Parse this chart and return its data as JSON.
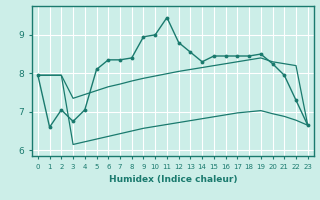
{
  "xlabel": "Humidex (Indice chaleur)",
  "ylabel": "",
  "background_color": "#cceee8",
  "line_color": "#1a7a6e",
  "grid_color": "#ffffff",
  "x": [
    0,
    1,
    2,
    3,
    4,
    5,
    6,
    7,
    8,
    9,
    10,
    11,
    12,
    13,
    14,
    15,
    16,
    17,
    18,
    19,
    20,
    21,
    22,
    23
  ],
  "y_main": [
    7.95,
    6.6,
    7.05,
    6.75,
    7.05,
    8.1,
    8.35,
    8.35,
    8.4,
    8.95,
    9.0,
    9.45,
    8.8,
    8.55,
    8.3,
    8.45,
    8.45,
    8.45,
    8.45,
    8.5,
    8.25,
    7.95,
    7.3,
    6.65
  ],
  "y_upper": [
    7.95,
    7.95,
    7.95,
    7.35,
    7.45,
    7.55,
    7.65,
    7.72,
    7.8,
    7.87,
    7.93,
    7.99,
    8.05,
    8.1,
    8.15,
    8.2,
    8.25,
    8.3,
    8.35,
    8.4,
    8.3,
    8.25,
    8.2,
    6.65
  ],
  "y_lower": [
    7.95,
    7.95,
    7.95,
    6.15,
    6.22,
    6.29,
    6.36,
    6.43,
    6.5,
    6.57,
    6.62,
    6.67,
    6.72,
    6.77,
    6.82,
    6.87,
    6.92,
    6.97,
    7.0,
    7.03,
    6.95,
    6.88,
    6.78,
    6.65
  ],
  "ylim": [
    5.85,
    9.75
  ],
  "xlim": [
    -0.5,
    23.5
  ],
  "yticks": [
    6,
    7,
    8,
    9
  ],
  "xticks": [
    0,
    1,
    2,
    3,
    4,
    5,
    6,
    7,
    8,
    9,
    10,
    11,
    12,
    13,
    14,
    15,
    16,
    17,
    18,
    19,
    20,
    21,
    22,
    23
  ],
  "xlabel_fontsize": 6.5,
  "tick_fontsize_x": 5.0,
  "tick_fontsize_y": 6.5
}
